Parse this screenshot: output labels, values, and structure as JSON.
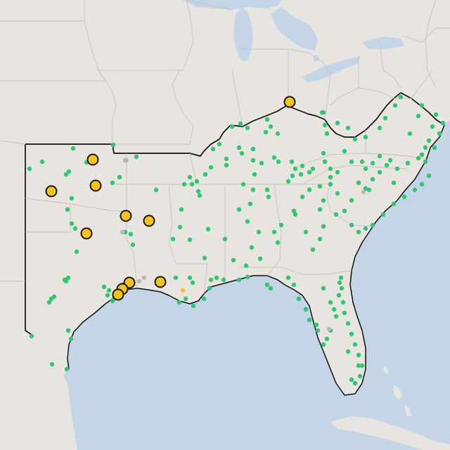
{
  "map": {
    "colors": {
      "land": "#e8e5e1",
      "water": "#c3d5e6",
      "state_border": "#c6c2bd",
      "region_outline": "#111111",
      "minor_marker": "#2ec870",
      "minor_marker_alt": "#b8b8b8",
      "major_marker_fill": "#f5c21b",
      "major_marker_stroke": "#1a1a1a",
      "small_yellow_marker": "#f5c21b"
    },
    "legend": null
  },
  "markers": {
    "major": [
      {
        "type": "major"
      },
      {
        "type": "major"
      },
      {
        "type": "major"
      },
      {
        "type": "major"
      },
      {
        "type": "major"
      },
      {
        "type": "major"
      },
      {
        "type": "major"
      },
      {
        "type": "major"
      },
      {
        "type": "major"
      },
      {
        "type": "major"
      },
      {
        "type": "major"
      }
    ],
    "minor_count_green": 300,
    "minor_count_grey": 6,
    "minor_count_small_yellow": 1
  }
}
